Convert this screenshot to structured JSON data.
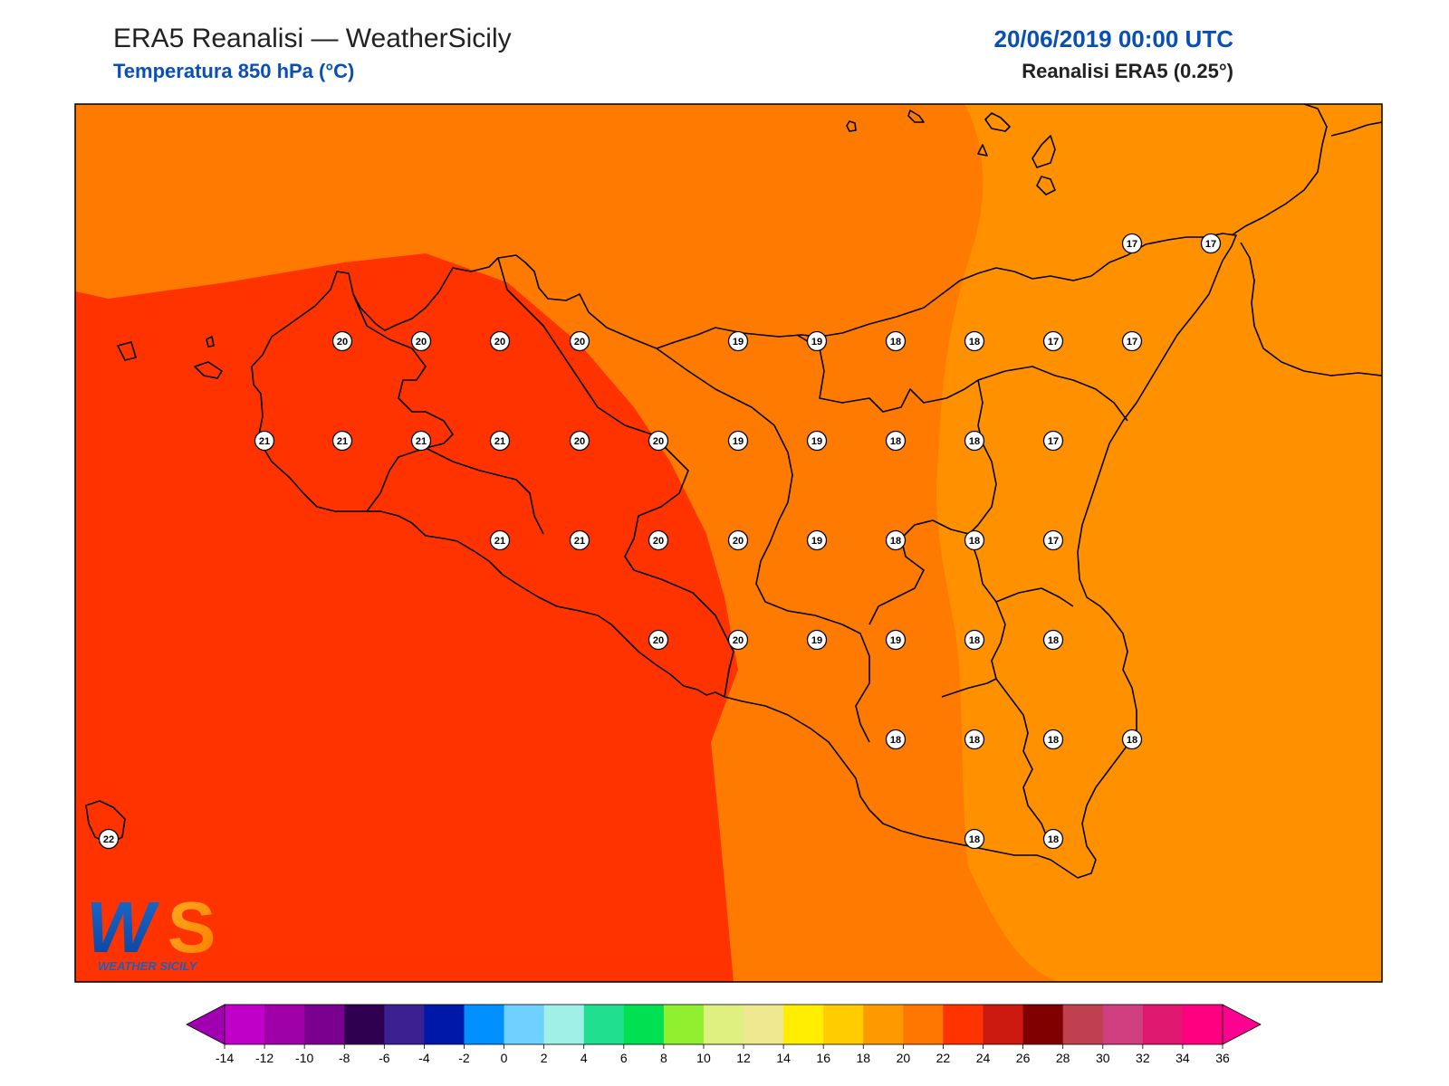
{
  "header": {
    "title": "ERA5 Reanalisi — WeatherSicily",
    "subtitle": "Temperatura 850 hPa (°C)",
    "datetime": "20/06/2019 00:00 UTC",
    "source": "Reanalisi ERA5 (0.25°)"
  },
  "colors": {
    "title_accent": "#0a4fb5",
    "zone_16_18": "#ff9100",
    "zone_18_20": "#ff7a00",
    "zone_20_22": "#ff3300",
    "coast": "#000000"
  },
  "logo": {
    "letters": "WS",
    "tagline": "WEATHER SICILY"
  },
  "stations": [
    {
      "v": "20"
    },
    {
      "v": "20"
    },
    {
      "v": "20"
    },
    {
      "v": "20"
    },
    {
      "v": "19"
    },
    {
      "v": "19"
    },
    {
      "v": "18"
    },
    {
      "v": "18"
    },
    {
      "v": "17"
    },
    {
      "v": "17"
    },
    {
      "v": "21"
    },
    {
      "v": "21"
    },
    {
      "v": "21"
    },
    {
      "v": "21"
    },
    {
      "v": "20"
    },
    {
      "v": "20"
    },
    {
      "v": "19"
    },
    {
      "v": "19"
    },
    {
      "v": "18"
    },
    {
      "v": "18"
    },
    {
      "v": "17"
    },
    {
      "v": "21"
    },
    {
      "v": "21"
    },
    {
      "v": "20"
    },
    {
      "v": "20"
    },
    {
      "v": "19"
    },
    {
      "v": "18"
    },
    {
      "v": "18"
    },
    {
      "v": "17"
    },
    {
      "v": "20"
    },
    {
      "v": "20"
    },
    {
      "v": "19"
    },
    {
      "v": "19"
    },
    {
      "v": "18"
    },
    {
      "v": "18"
    },
    {
      "v": "18"
    },
    {
      "v": "18"
    },
    {
      "v": "18"
    },
    {
      "v": "18"
    },
    {
      "v": "18"
    },
    {
      "v": "18"
    },
    {
      "v": "17"
    },
    {
      "v": "17"
    },
    {
      "v": "22"
    }
  ],
  "colorbar": {
    "ticks": [
      "-14",
      "-12",
      "-10",
      "-8",
      "-6",
      "-4",
      "-2",
      "0",
      "2",
      "4",
      "6",
      "8",
      "10",
      "12",
      "14",
      "16",
      "18",
      "20",
      "22",
      "24",
      "26",
      "28",
      "30",
      "32",
      "34",
      "36"
    ],
    "colors": [
      "#c000c8",
      "#a000a8",
      "#7a0090",
      "#300050",
      "#3a2090",
      "#0018a8",
      "#0090ff",
      "#70d0ff",
      "#a0f0e8",
      "#20e090",
      "#00e050",
      "#90f030",
      "#e0f080",
      "#f0e890",
      "#ffee00",
      "#ffcc00",
      "#ff9900",
      "#ff7700",
      "#ff3300",
      "#cc1a10",
      "#800000",
      "#c04050",
      "#d04080",
      "#e01870",
      "#ff0080"
    ],
    "low_cap": "#a000b0",
    "high_cap": "#ff0090"
  }
}
